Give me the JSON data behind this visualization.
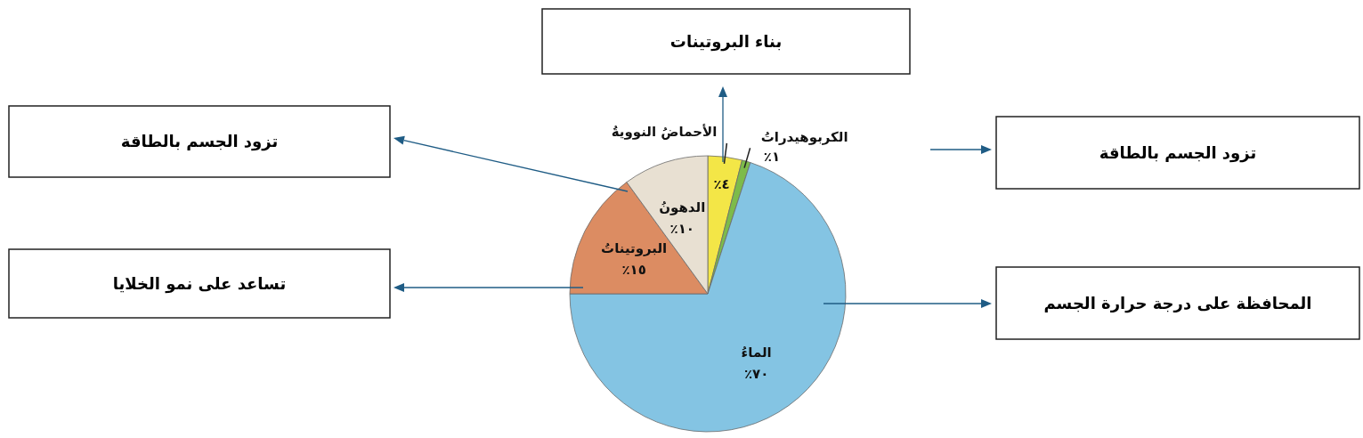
{
  "chart_data": {
    "type": "pie",
    "categories": [
      "الأحماضُ النوويةُ",
      "الكربوهيدراتُ",
      "الماءُ",
      "البروتيناتُ",
      "الدهونُ"
    ],
    "values": [
      4,
      1,
      70,
      15,
      10
    ],
    "colors": [
      "#f3e647",
      "#7dbb4a",
      "#84c4e3",
      "#dc8c62",
      "#e8e0d2"
    ],
    "value_labels": [
      "٪٤",
      "٪١",
      "٪٧٠",
      "٪١٥",
      "٪١٠"
    ],
    "annotations": [
      "بناء البروتينات",
      "تزود الجسم بالطاقة",
      "تزود الجسم بالطاقة",
      "تساعد على نمو الخلايا",
      "المحافظة على درجة حرارة الجسم"
    ]
  }
}
